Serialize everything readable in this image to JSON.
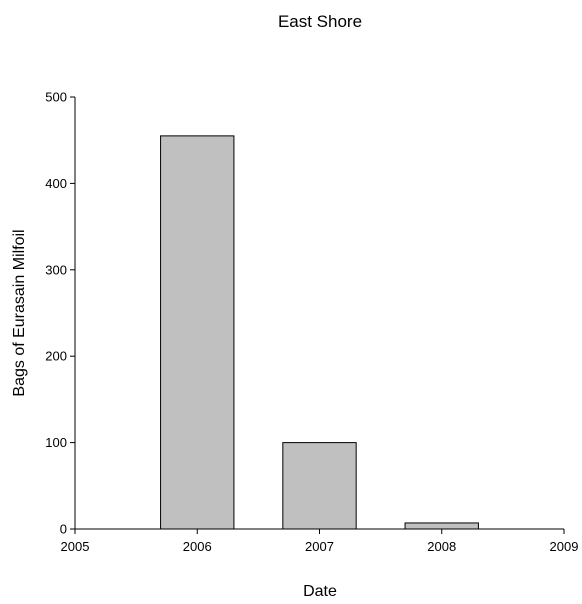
{
  "chart_data": {
    "type": "bar",
    "title": "East Shore",
    "xlabel": "Date",
    "ylabel": "Bags of Eurasain Milfoil",
    "xlim": [
      2005,
      2009
    ],
    "ylim": [
      0,
      500
    ],
    "x_ticks": [
      "2005",
      "2006",
      "2007",
      "2008",
      "2009"
    ],
    "y_ticks": [
      "0",
      "100",
      "200",
      "300",
      "400",
      "500"
    ],
    "categories": [
      "2006",
      "2007",
      "2008"
    ],
    "x": [
      2006,
      2007,
      2008
    ],
    "values": [
      455,
      100,
      7
    ],
    "bar_width": 0.6,
    "bar_color": "#c0c0c0",
    "grid": false,
    "legend": "none"
  }
}
